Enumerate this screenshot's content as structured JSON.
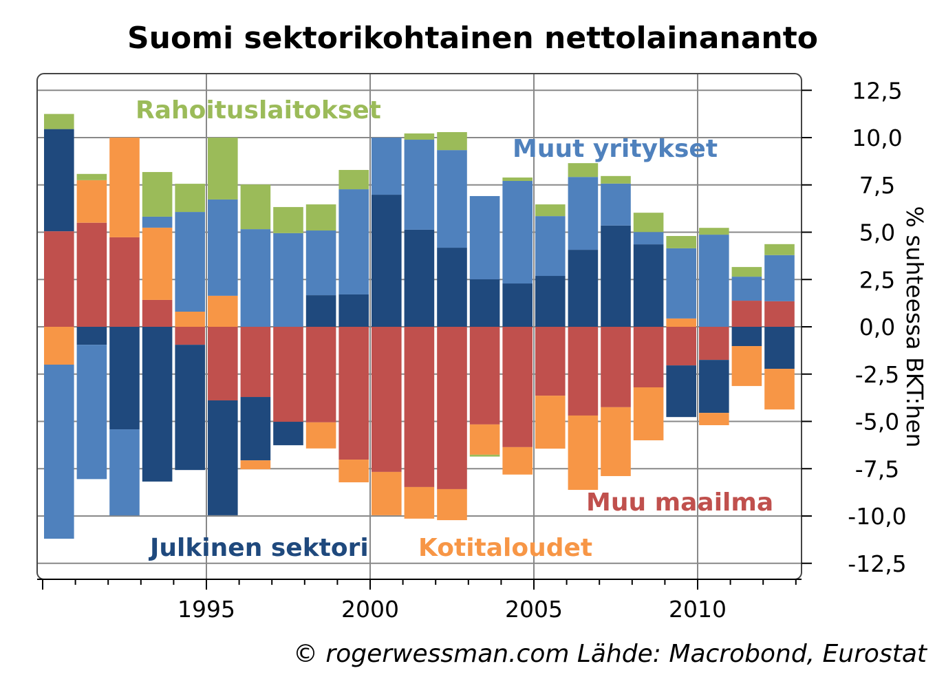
{
  "chart_data": {
    "type": "bar",
    "stacked": true,
    "title": "Suomi sektorikohtainen nettolainananto",
    "ylabel": "% suhteessa BKT:hen",
    "xlabel": "",
    "source": "© rogerwessman.com Lähde: Macrobond, Eurostat",
    "ylim": [
      -13.5,
      12.5
    ],
    "yticks": [
      "12,5",
      "10,0",
      "7,5",
      "5,0",
      "2,5",
      "0,0",
      "-2,5",
      "-5,0",
      "-7,5",
      "-10,0",
      "-12,5"
    ],
    "ytick_values": [
      12.5,
      10,
      7.5,
      5,
      2.5,
      0,
      -2.5,
      -5,
      -7.5,
      -10,
      -12.5
    ],
    "xticks": [
      "1995",
      "2000",
      "2005",
      "2010"
    ],
    "xtick_values": [
      1995,
      2000,
      2005,
      2010
    ],
    "grid": true,
    "categories": [
      1990,
      1991,
      1992,
      1993,
      1994,
      1995,
      1996,
      1997,
      1998,
      1999,
      2000,
      2001,
      2002,
      2003,
      2004,
      2005,
      2006,
      2007,
      2008,
      2009,
      2010,
      2011,
      2012
    ],
    "series": [
      {
        "name": "Muu maailma",
        "color": "#C0504D",
        "values": [
          5.05,
          5.5,
          4.73,
          1.42,
          -0.95,
          -3.89,
          -3.71,
          -5.02,
          -5.05,
          -7.02,
          -7.67,
          -8.47,
          -8.58,
          -5.16,
          -6.36,
          -3.64,
          -4.69,
          -4.25,
          -3.2,
          -2.04,
          -1.75,
          1.38,
          1.35
        ]
      },
      {
        "name": "Julkinen sektori",
        "color": "#1F497D",
        "values": [
          5.4,
          -0.95,
          -5.42,
          -8.18,
          -6.62,
          -6.07,
          -3.35,
          -1.24,
          1.67,
          1.71,
          6.98,
          5.13,
          4.18,
          2.51,
          2.29,
          2.69,
          4.07,
          5.35,
          4.36,
          -2.73,
          -2.8,
          -1.02,
          -2.22
        ]
      },
      {
        "name": "Kotitaloudet",
        "color": "#F79646",
        "values": [
          -2.0,
          2.25,
          5.27,
          3.82,
          0.8,
          1.64,
          -0.47,
          0,
          -1.38,
          -1.2,
          -2.29,
          -1.67,
          -1.64,
          -1.6,
          -1.45,
          -2.8,
          -3.93,
          -3.64,
          -2.8,
          0.44,
          -0.65,
          -2.11,
          -2.15
        ]
      },
      {
        "name": "Muut yritykset",
        "color": "#4F81BD",
        "values": [
          -9.2,
          -7.1,
          -4.55,
          0.58,
          5.27,
          5.09,
          5.16,
          4.95,
          3.42,
          5.56,
          3.02,
          4.76,
          5.16,
          4.4,
          5.42,
          3.16,
          3.85,
          2.22,
          0.65,
          3.71,
          4.87,
          1.27,
          2.44
        ]
      },
      {
        "name": "Rahoituslaitokset",
        "color": "#9BBB59",
        "values": [
          0.8,
          0.33,
          0,
          2.36,
          1.49,
          3.27,
          2.36,
          1.38,
          1.38,
          1.02,
          0,
          0.33,
          0.95,
          -0.1,
          0.18,
          0.62,
          0.73,
          0.4,
          1.02,
          0.65,
          0.36,
          0.51,
          0.58
        ]
      }
    ]
  }
}
